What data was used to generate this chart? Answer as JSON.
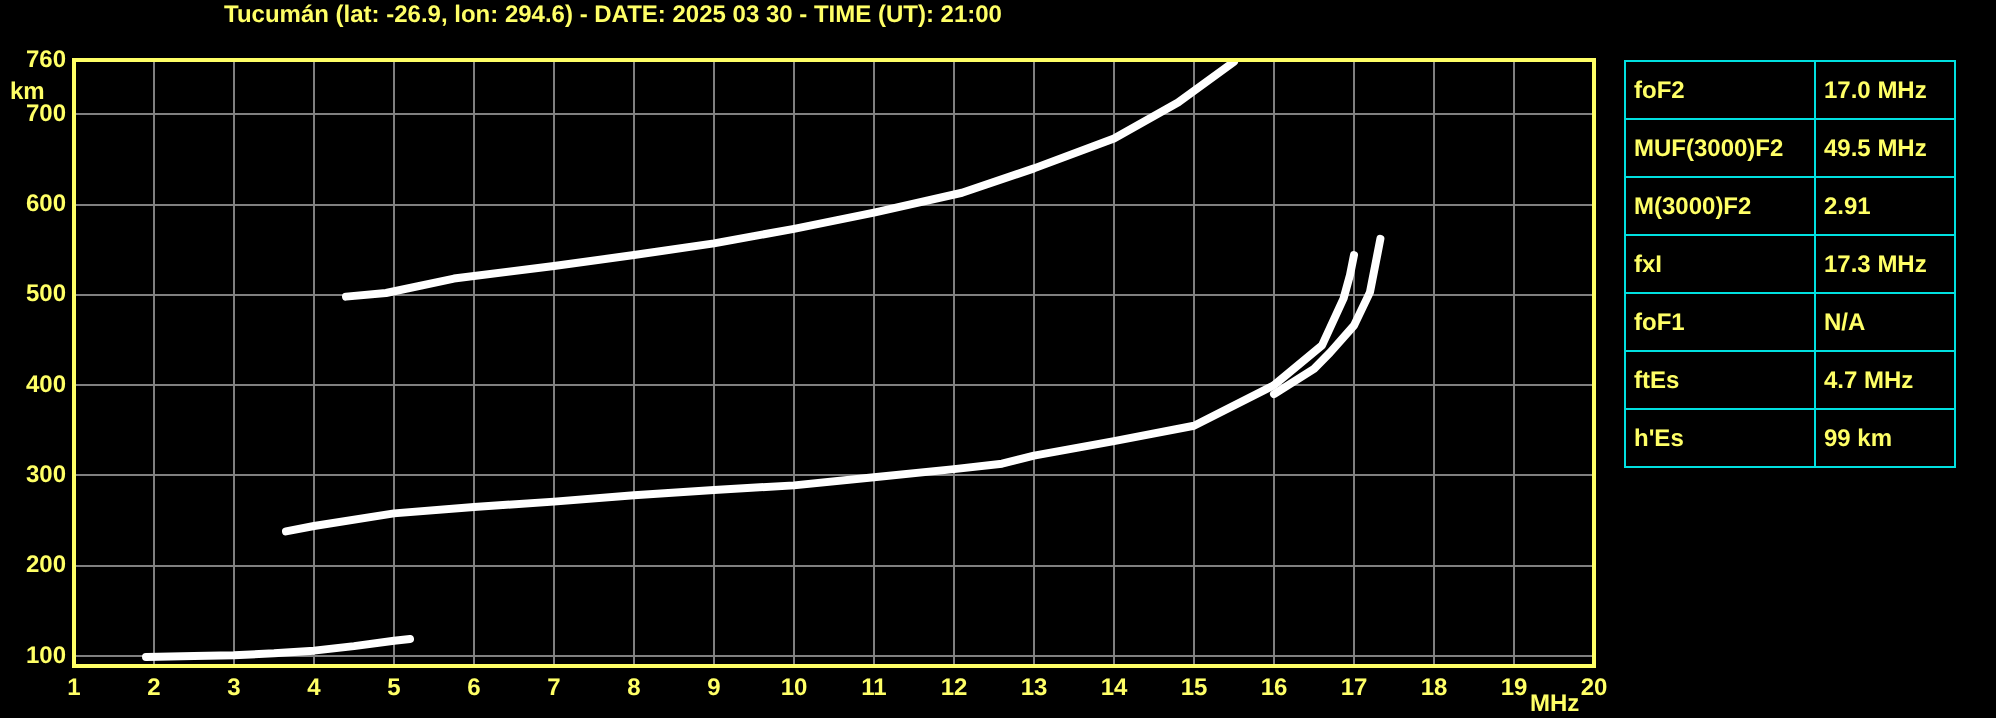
{
  "chart_data": {
    "type": "line",
    "title": "Tucumán (lat: -26.9, lon: 294.6) - DATE: 2025 03 30 - TIME (UT): 21:00",
    "xlabel": "MHz",
    "ylabel": "km",
    "xlim": [
      1,
      20
    ],
    "xticks": [
      1,
      2,
      3,
      4,
      5,
      6,
      7,
      8,
      9,
      10,
      11,
      12,
      13,
      14,
      15,
      16,
      17,
      18,
      19,
      20
    ],
    "ylim": [
      89,
      760
    ],
    "yticks": [
      100,
      200,
      300,
      400,
      500,
      600,
      700,
      760
    ],
    "grid": true,
    "legend": false,
    "marker": "none",
    "line_style": "solid",
    "series": [
      {
        "color": "#ffffff",
        "x": [
          1.9,
          2.5,
          3,
          3.5,
          4,
          4.5,
          5,
          5.2
        ],
        "values": [
          99,
          100,
          101,
          103,
          106,
          111,
          117,
          119
        ]
      },
      {
        "color": "#ffffff",
        "x": [
          3.65,
          4,
          5,
          6,
          7,
          8,
          9,
          10,
          11,
          12,
          12.6,
          13,
          14,
          15,
          16,
          16.6,
          16.87,
          16.95,
          17
        ],
        "values": [
          238,
          244,
          258,
          265,
          271,
          278,
          284,
          289,
          298,
          307,
          313,
          322,
          338,
          355,
          400,
          444,
          496,
          522,
          544
        ]
      },
      {
        "color": "#ffffff",
        "x": [
          16,
          16.5,
          16.7,
          17,
          17.2,
          17.33
        ],
        "values": [
          390,
          418,
          436,
          466,
          503,
          562
        ]
      },
      {
        "color": "#ffffff",
        "x": [
          4.4,
          4.9,
          5.75,
          7,
          8,
          9,
          10,
          11,
          12.1,
          13,
          14,
          14.8,
          15.5
        ],
        "values": [
          498,
          502,
          518,
          532,
          544,
          557,
          573,
          591,
          613,
          640,
          673,
          713,
          758
        ]
      }
    ],
    "annotations": [
      "foF2",
      "17.0 MHz",
      "MUF(3000)F2",
      "49.5 MHz",
      "M(3000)F2",
      "2.91",
      "fxI",
      "17.3 MHz",
      "foF1",
      "N/A",
      "ftEs",
      "4.7 MHz",
      "h'Es",
      "99 km"
    ]
  }
}
